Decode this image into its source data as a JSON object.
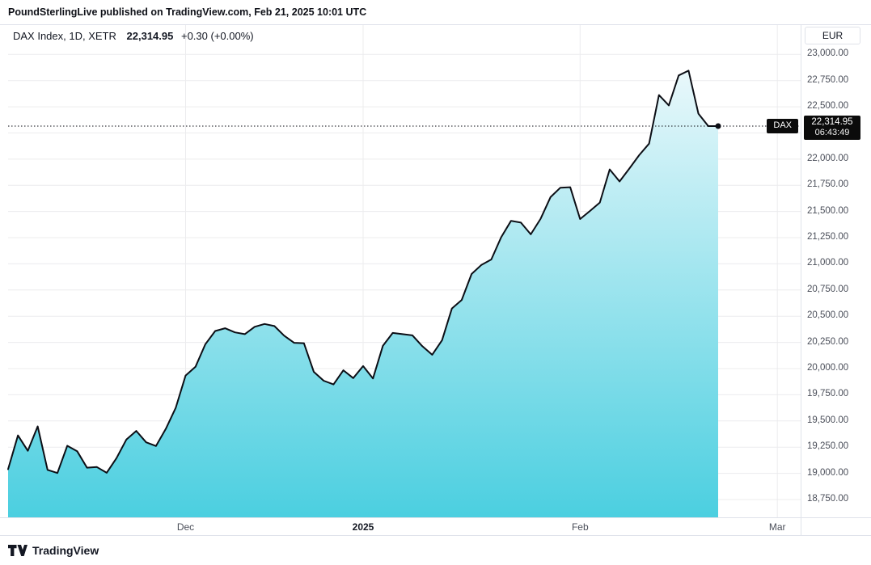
{
  "header": {
    "publisher": "PoundSterlingLive",
    "publish_info": " published on TradingView.com, Feb 21, 2025 10:01 UTC"
  },
  "legend": {
    "symbol": "DAX Index, 1D, XETR",
    "price": "22,314.95",
    "change": "+0.30 (+0.00%)"
  },
  "price_axis": {
    "currency_label": "EUR",
    "ticks": [
      {
        "value": 23000,
        "label": "23,000.00"
      },
      {
        "value": 22750,
        "label": "22,750.00"
      },
      {
        "value": 22500,
        "label": "22,500.00"
      },
      {
        "value": 22000,
        "label": "22,000.00"
      },
      {
        "value": 21750,
        "label": "21,750.00"
      },
      {
        "value": 21500,
        "label": "21,500.00"
      },
      {
        "value": 21250,
        "label": "21,250.00"
      },
      {
        "value": 21000,
        "label": "21,000.00"
      },
      {
        "value": 20750,
        "label": "20,750.00"
      },
      {
        "value": 20500,
        "label": "20,500.00"
      },
      {
        "value": 20250,
        "label": "20,250.00"
      },
      {
        "value": 20000,
        "label": "20,000.00"
      },
      {
        "value": 19750,
        "label": "19,750.00"
      },
      {
        "value": 19500,
        "label": "19,500.00"
      },
      {
        "value": 19250,
        "label": "19,250.00"
      },
      {
        "value": 19000,
        "label": "19,000.00"
      },
      {
        "value": 18750,
        "label": "18,750.00"
      }
    ],
    "grid_only": [
      22250
    ]
  },
  "price_label": {
    "symbol": "DAX",
    "price": "22,314.95",
    "countdown": "06:43:49"
  },
  "time_axis": {
    "ticks": [
      {
        "label": "Dec",
        "index": 18,
        "emphasis": false
      },
      {
        "label": "2025",
        "index": 36,
        "emphasis": true
      },
      {
        "label": "Feb",
        "index": 58,
        "emphasis": false
      },
      {
        "label": "Mar",
        "index": 78,
        "emphasis": false
      }
    ]
  },
  "footer": {
    "brand": "TradingView"
  },
  "colors": {
    "line": "#0c0e15",
    "area_top": "#e9f8fb",
    "area_bottom": "#4bcfe0",
    "grid": "#ececee",
    "label_bg": "#0b0b0b",
    "border": "#e0e3eb"
  },
  "chart_data": {
    "type": "area",
    "title": "DAX Index, 1D, XETR",
    "symbol": "DAX",
    "exchange": "XETR",
    "interval": "1D",
    "currency": "EUR",
    "last_price": 22314.95,
    "change": "+0.30",
    "change_pct": "+0.00%",
    "countdown": "06:43:49",
    "ylabel": "EUR",
    "price_range": [
      18580,
      23280
    ],
    "grid": "on",
    "legend_position": "top-left",
    "series": [
      {
        "name": "DAX",
        "points": [
          [
            "2024-11-06",
            19039
          ],
          [
            "2024-11-07",
            19362
          ],
          [
            "2024-11-08",
            19215
          ],
          [
            "2024-11-11",
            19448
          ],
          [
            "2024-11-12",
            19033
          ],
          [
            "2024-11-13",
            19003
          ],
          [
            "2024-11-14",
            19263
          ],
          [
            "2024-11-15",
            19211
          ],
          [
            "2024-11-18",
            19054
          ],
          [
            "2024-11-19",
            19060
          ],
          [
            "2024-11-20",
            19005
          ],
          [
            "2024-11-21",
            19146
          ],
          [
            "2024-11-22",
            19323
          ],
          [
            "2024-11-25",
            19405
          ],
          [
            "2024-11-26",
            19296
          ],
          [
            "2024-11-27",
            19261
          ],
          [
            "2024-11-28",
            19426
          ],
          [
            "2024-11-29",
            19626
          ],
          [
            "2024-12-02",
            19934
          ],
          [
            "2024-12-03",
            20017
          ],
          [
            "2024-12-04",
            20232
          ],
          [
            "2024-12-05",
            20359
          ],
          [
            "2024-12-06",
            20385
          ],
          [
            "2024-12-09",
            20346
          ],
          [
            "2024-12-10",
            20329
          ],
          [
            "2024-12-11",
            20399
          ],
          [
            "2024-12-12",
            20426
          ],
          [
            "2024-12-13",
            20406
          ],
          [
            "2024-12-16",
            20314
          ],
          [
            "2024-12-17",
            20246
          ],
          [
            "2024-12-18",
            20242
          ],
          [
            "2024-12-19",
            19969
          ],
          [
            "2024-12-20",
            19884
          ],
          [
            "2024-12-23",
            19849
          ],
          [
            "2024-12-27",
            19984
          ],
          [
            "2024-12-30",
            19909
          ],
          [
            "2025-01-02",
            20024
          ],
          [
            "2025-01-03",
            19906
          ],
          [
            "2025-01-06",
            20217
          ],
          [
            "2025-01-07",
            20340
          ],
          [
            "2025-01-08",
            20329
          ],
          [
            "2025-01-09",
            20317
          ],
          [
            "2025-01-10",
            20214
          ],
          [
            "2025-01-13",
            20132
          ],
          [
            "2025-01-14",
            20271
          ],
          [
            "2025-01-15",
            20574
          ],
          [
            "2025-01-16",
            20655
          ],
          [
            "2025-01-17",
            20903
          ],
          [
            "2025-01-20",
            20990
          ],
          [
            "2025-01-21",
            21042
          ],
          [
            "2025-01-22",
            21254
          ],
          [
            "2025-01-23",
            21411
          ],
          [
            "2025-01-24",
            21394
          ],
          [
            "2025-01-27",
            21282
          ],
          [
            "2025-01-28",
            21431
          ],
          [
            "2025-01-29",
            21637
          ],
          [
            "2025-01-30",
            21727
          ],
          [
            "2025-01-31",
            21732
          ],
          [
            "2025-02-03",
            21428
          ],
          [
            "2025-02-04",
            21505
          ],
          [
            "2025-02-05",
            21585
          ],
          [
            "2025-02-06",
            21902
          ],
          [
            "2025-02-07",
            21787
          ],
          [
            "2025-02-10",
            21911
          ],
          [
            "2025-02-11",
            22038
          ],
          [
            "2025-02-12",
            22148
          ],
          [
            "2025-02-13",
            22612
          ],
          [
            "2025-02-14",
            22513
          ],
          [
            "2025-02-17",
            22799
          ],
          [
            "2025-02-18",
            22845
          ],
          [
            "2025-02-19",
            22434
          ],
          [
            "2025-02-20",
            22315
          ],
          [
            "2025-02-21",
            22314.95
          ]
        ]
      }
    ]
  }
}
